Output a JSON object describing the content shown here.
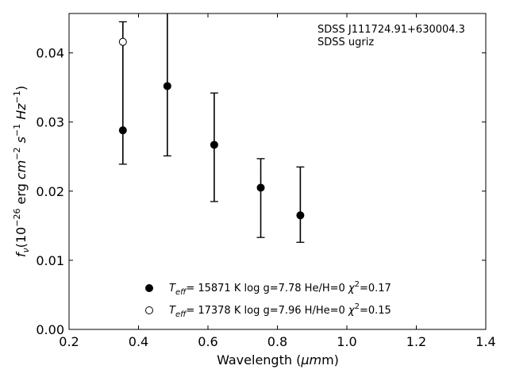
{
  "chart_data": {
    "type": "scatter",
    "title": "",
    "xlabel": "Wavelength",
    "xlabel_unit_symbol": "μm",
    "ylabel_parts": {
      "f": "f",
      "f_sub": "ν",
      "open": "(10",
      "exp1": "−26",
      "mid": " erg ",
      "cm": "cm",
      "exp2": "−2",
      "s": " s",
      "exp3": "−1",
      "hz": " Hz",
      "exp4": "−1",
      "close": ")"
    },
    "xlim": [
      0.2,
      1.4
    ],
    "ylim": [
      0.0,
      0.0457
    ],
    "x_ticks": [
      0.2,
      0.4,
      0.6,
      0.8,
      1.0,
      1.2,
      1.4
    ],
    "x_tick_labels": [
      "0.2",
      "0.4",
      "0.6",
      "0.8",
      "1.0",
      "1.2",
      "1.4"
    ],
    "y_ticks": [
      0.0,
      0.01,
      0.02,
      0.03,
      0.04
    ],
    "y_tick_labels": [
      "0.00",
      "0.01",
      "0.02",
      "0.03",
      "0.04"
    ],
    "grid": false,
    "annotation": [
      "SDSS J111724.91+630004.3",
      "SDSS ugriz"
    ],
    "legend_position": "lower-center",
    "observed": {
      "x": [
        0.355,
        0.483,
        0.618,
        0.752,
        0.866
      ],
      "y_low": [
        0.0239,
        0.0251,
        0.0185,
        0.0133,
        0.0126
      ],
      "y_high": [
        0.0445,
        0.046,
        0.0342,
        0.0247,
        0.0235
      ]
    },
    "series": [
      {
        "marker": "filled-circle",
        "label_parts": [
          "T",
          "eff",
          "= 15871 K  log g=7.78  He/H=0  ",
          "χ",
          "2",
          "=0.17"
        ],
        "x": [
          0.355,
          0.483,
          0.618,
          0.752,
          0.866
        ],
        "y": [
          0.0288,
          0.0352,
          0.0267,
          0.0205,
          0.0165
        ]
      },
      {
        "marker": "open-circle",
        "label_parts": [
          "T",
          "eff",
          "= 17378 K  log g=7.96  H/He=0  ",
          "χ",
          "2",
          "=0.15"
        ],
        "x": [
          0.355
        ],
        "y": [
          0.0416
        ]
      }
    ]
  }
}
